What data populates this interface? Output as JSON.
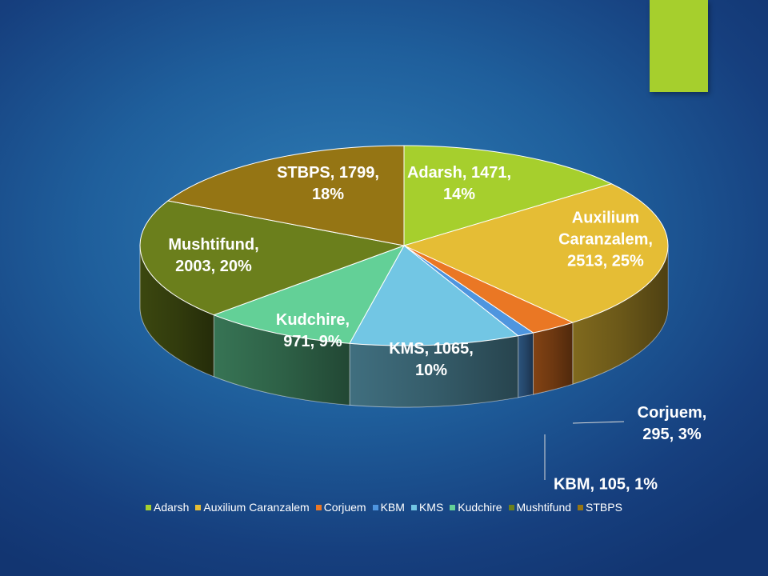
{
  "chart_data": {
    "type": "pie",
    "title": "",
    "slices": [
      {
        "label": "Adarsh",
        "value": 1471,
        "percent": "14%",
        "color": "#a6cf2d",
        "data_label": [
          "Adarsh, 1471,",
          "14%"
        ]
      },
      {
        "label": "Auxilium Caranzalem",
        "value": 2513,
        "percent": "25%",
        "color": "#e5bd35",
        "data_label": [
          "Auxilium",
          "Caranzalem,",
          "2513, 25%"
        ]
      },
      {
        "label": "Corjuem",
        "value": 295,
        "percent": "3%",
        "color": "#ea7724",
        "data_label": [
          "Corjuem,",
          "295, 3%"
        ]
      },
      {
        "label": "KBM",
        "value": 105,
        "percent": "1%",
        "color": "#4e95df",
        "data_label": [
          "KBM, 105, 1%"
        ]
      },
      {
        "label": "KMS",
        "value": 1065,
        "percent": "10%",
        "color": "#72c6e4",
        "data_label": [
          "KMS, 1065,",
          "10%"
        ]
      },
      {
        "label": "Kudchire",
        "value": 971,
        "percent": "9%",
        "color": "#63d097",
        "data_label": [
          "Kudchire,",
          "971, 9%"
        ]
      },
      {
        "label": "Mushtifund",
        "value": 2003,
        "percent": "20%",
        "color": "#6b7f1c",
        "data_label": [
          "Mushtifund,",
          "2003, 20%"
        ]
      },
      {
        "label": "STBPS",
        "value": 1799,
        "percent": "18%",
        "color": "#957514",
        "data_label": [
          "STBPS, 1799,",
          "18%"
        ]
      }
    ],
    "legend": {
      "position": "bottom",
      "entries": [
        "Adarsh",
        "Auxilium Caranzalem",
        "Corjuem",
        "KBM",
        "KMS",
        "Kudchire",
        "Mushtifund",
        "STBPS"
      ]
    }
  },
  "slide": {
    "accent_color": "#a6cf2d"
  }
}
